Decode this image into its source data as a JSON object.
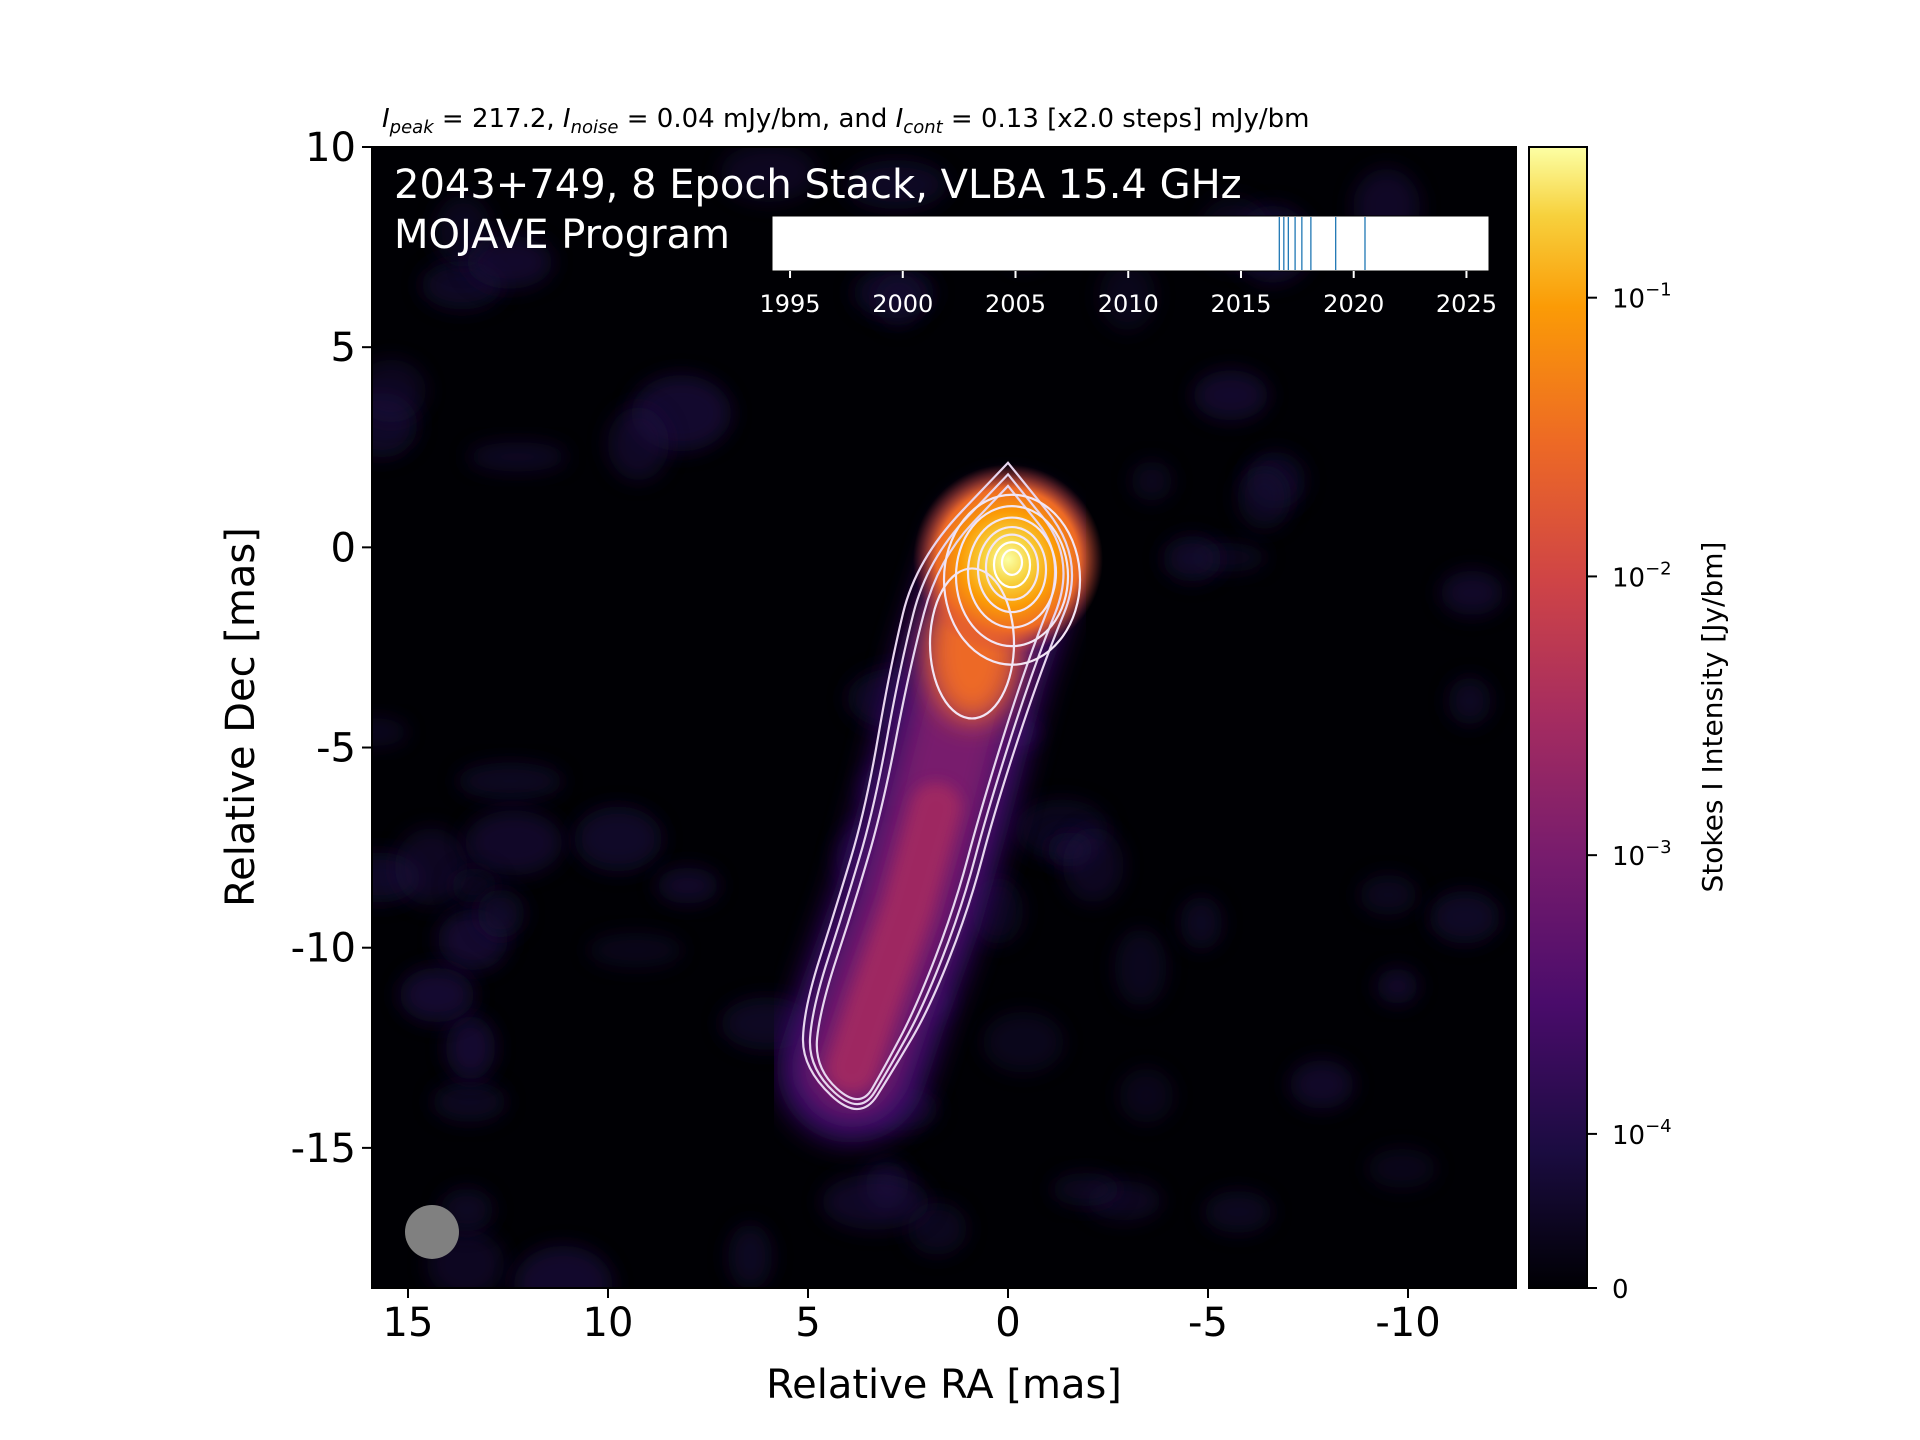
{
  "chart_data": [
    {
      "type": "heatmap",
      "title": {
        "i_peak_symbol": "I",
        "i_peak_sub": "peak",
        "i_peak_value": " = 217.2, ",
        "i_noise_symbol": "I",
        "i_noise_sub": "noise",
        "i_noise_value": " = 0.04 mJy/bm, and ",
        "i_cont_symbol": "I",
        "i_cont_sub": "cont",
        "i_cont_value": " = 0.13 [x2.0 steps] mJy/bm"
      },
      "annotation_line1": "2043+749, 8 Epoch Stack, VLBA 15.4 GHz",
      "annotation_line2": "MOJAVE Program",
      "xlabel": "Relative RA [mas]",
      "ylabel": "Relative Dec [mas]",
      "xlim": [
        15.9,
        -12.7
      ],
      "ylim": [
        -18.5,
        10.0
      ],
      "x_ticks": [
        15,
        10,
        5,
        0,
        -5,
        -10
      ],
      "x_tick_labels": [
        "15",
        "10",
        "5",
        "0",
        "-5",
        "-10"
      ],
      "y_ticks": [
        10,
        5,
        0,
        -5,
        -10,
        -15
      ],
      "y_tick_labels": [
        "10",
        "5",
        "0",
        "-5",
        "-10",
        "-15"
      ],
      "background_color": "#000004",
      "colormap": "inferno",
      "colorbar": {
        "label": "Stokes I Intensity [Jy/bm]",
        "scale": "log",
        "ticks": [
          {
            "base": "10",
            "exp": "−1",
            "value": 0.1
          },
          {
            "base": "10",
            "exp": "−2",
            "value": 0.01
          },
          {
            "base": "10",
            "exp": "−3",
            "value": 0.001
          },
          {
            "base": "10",
            "exp": "−4",
            "value": 0.0001
          },
          {
            "base": "0",
            "exp": "",
            "value": 0
          }
        ]
      },
      "core": {
        "ra": 0.0,
        "dec": -0.3,
        "intensity_jy": 0.217
      },
      "jet_ridge": [
        {
          "ra": 0.0,
          "dec": -0.3
        },
        {
          "ra": 0.9,
          "dec": -3.0
        },
        {
          "ra": 1.8,
          "dec": -6.5
        },
        {
          "ra": 2.5,
          "dec": -9.0
        },
        {
          "ra": 3.4,
          "dec": -11.5
        },
        {
          "ra": 3.9,
          "dec": -13.0
        }
      ],
      "contour_levels_mjy": [
        0.13,
        0.26,
        0.52,
        1.04,
        2.08,
        4.16,
        8.32,
        16.64,
        33.28,
        66.56,
        133.12
      ],
      "beam": {
        "ra": 14.4,
        "dec": -17.1,
        "color": "#808080"
      }
    },
    {
      "type": "scatter",
      "subtype": "epoch-timeline-inset",
      "x_ticks": [
        "1995",
        "2000",
        "2005",
        "2010",
        "2015",
        "2020",
        "2025"
      ],
      "xlim": [
        1994.2,
        2026.0
      ],
      "epochs": [
        2016.7,
        2016.9,
        2017.1,
        2017.4,
        2017.7,
        2018.1,
        2019.2,
        2020.5
      ],
      "line_color": "#1f77b4"
    }
  ]
}
